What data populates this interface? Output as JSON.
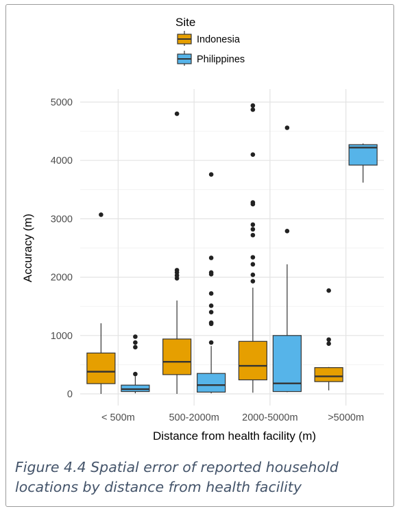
{
  "caption": "Figure 4.4 Spatial error of reported household locations by distance from health facility",
  "chart_data": {
    "type": "boxplot",
    "title": "",
    "xlabel": "Distance from health facility (m)",
    "ylabel": "Accuracy (m)",
    "ylim": [
      0,
      5000
    ],
    "yticks": [
      0,
      1000,
      2000,
      3000,
      4000,
      5000
    ],
    "grid": true,
    "legend": {
      "title": "Site",
      "placement": "top"
    },
    "categories": [
      "< 500m",
      "500-2000m",
      "2000-5000m",
      ">5000m"
    ],
    "series": [
      {
        "name": "Indonesia",
        "color": "#E69F00",
        "boxes": [
          {
            "category": "< 500m",
            "min": 0,
            "q1": 175,
            "median": 380,
            "q3": 700,
            "max": 1210,
            "outliers": [
              3070
            ]
          },
          {
            "category": "500-2000m",
            "min": 0,
            "q1": 330,
            "median": 550,
            "q3": 940,
            "max": 1600,
            "outliers": [
              1980,
              2030,
              2080,
              2120,
              4800
            ]
          },
          {
            "category": "2000-5000m",
            "min": 20,
            "q1": 240,
            "median": 480,
            "q3": 900,
            "max": 1820,
            "outliers": [
              1930,
              2040,
              2220,
              2340,
              2720,
              2820,
              2900,
              3250,
              3280,
              4100,
              4870,
              4940
            ]
          },
          {
            "category": ">5000m",
            "min": 60,
            "q1": 210,
            "median": 300,
            "q3": 450,
            "max": 460,
            "outliers": [
              860,
              930,
              1770
            ]
          }
        ]
      },
      {
        "name": "Philippines",
        "color": "#56B4E9",
        "boxes": [
          {
            "category": "< 500m",
            "min": 10,
            "q1": 40,
            "median": 80,
            "q3": 150,
            "max": 300,
            "outliers": [
              340,
              800,
              880,
              980
            ]
          },
          {
            "category": "500-2000m",
            "min": 10,
            "q1": 30,
            "median": 150,
            "q3": 350,
            "max": 820,
            "outliers": [
              880,
              1200,
              1220,
              1400,
              1510,
              1720,
              2050,
              2080,
              2330,
              3760
            ]
          },
          {
            "category": "2000-5000m",
            "min": 30,
            "q1": 40,
            "median": 180,
            "q3": 1000,
            "max": 2220,
            "outliers": [
              2790,
              4560
            ]
          },
          {
            "category": ">5000m",
            "min": 3620,
            "q1": 3920,
            "median": 4220,
            "q3": 4270,
            "max": 4290,
            "outliers": []
          }
        ]
      }
    ]
  }
}
